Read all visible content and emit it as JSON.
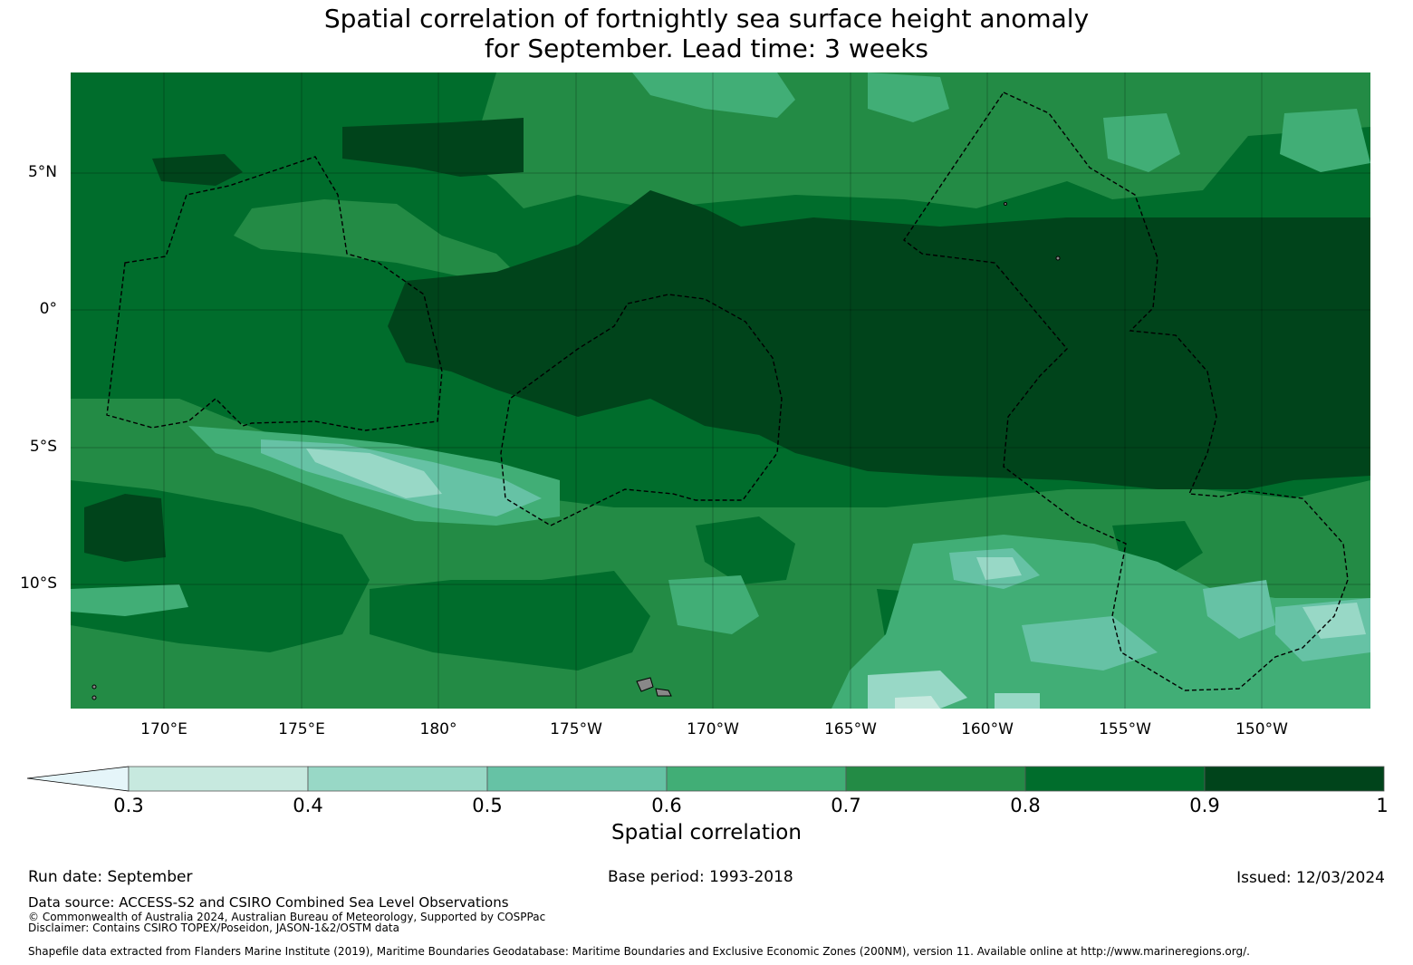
{
  "title": {
    "line1": "Spatial correlation of fortnightly sea surface height anomaly",
    "line2": "for September. Lead time: 3 weeks"
  },
  "map": {
    "lat_labels": [
      "5°N",
      "0°",
      "5°S",
      "10°S"
    ],
    "lon_labels": [
      "170°E",
      "175°E",
      "180°",
      "175°W",
      "170°W",
      "165°W",
      "160°W",
      "155°W",
      "150°W"
    ],
    "colors": {
      "band_03_04": "#c7e9df",
      "band_04_05": "#98d8c6",
      "band_05_06": "#66c2a5",
      "band_06_07": "#41ae76",
      "band_07_08": "#238b45",
      "band_08_09": "#006d2c",
      "band_09_10": "#00441b",
      "below_03": "#e5f5f9",
      "land": "#888888",
      "boundary": "#000000"
    }
  },
  "colorbar": {
    "ticks": [
      "0.3",
      "0.4",
      "0.5",
      "0.6",
      "0.7",
      "0.8",
      "0.9",
      "1"
    ],
    "title": "Spatial correlation"
  },
  "footer": {
    "run_date": "Run date: September",
    "base_period": "Base period: 1993-2018",
    "issued": "Issued: 12/03/2024",
    "data_source": "Data source: ACCESS-S2 and CSIRO Combined Sea Level Observations",
    "copyright": "© Commonwealth of Australia 2024, Australian Bureau of Meteorology, Supported by COSPPac",
    "disclaimer": "Disclaimer: Contains CSIRO TOPEX/Poseidon, JASON-1&2/OSTM data",
    "shapefile": "Shapefile data extracted from Flanders Marine Institute (2019), Maritime Boundaries Geodatabase: Maritime Boundaries and Exclusive Economic Zones (200NM), version 11. Available online at http://www.marineregions.org/."
  }
}
